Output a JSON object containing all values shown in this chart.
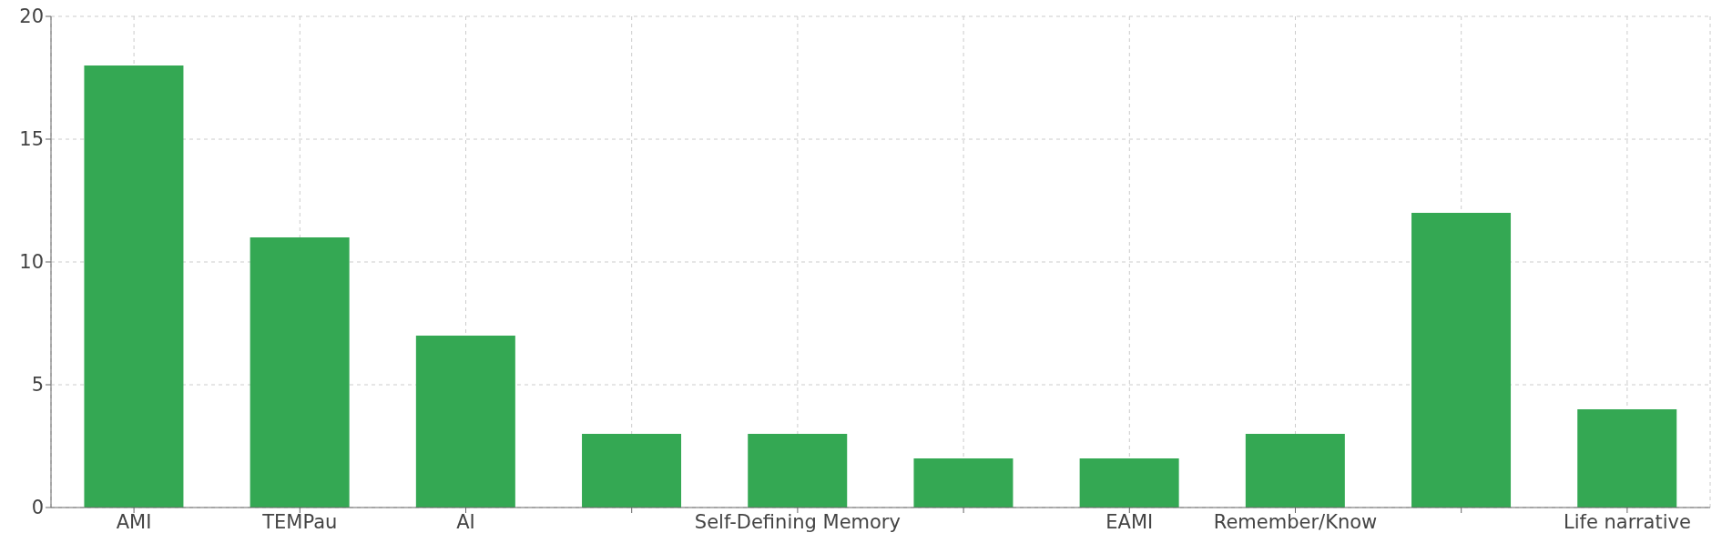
{
  "chart_data": {
    "type": "bar",
    "categories": [
      "AMI",
      "TEMPau",
      "AI",
      null,
      "Self-Defining Memory",
      null,
      "EAMI",
      "Remember/Know",
      null,
      "Life narrative"
    ],
    "values": [
      18,
      11,
      7,
      3,
      3,
      2,
      2,
      3,
      12,
      4
    ],
    "color": "#34a853",
    "ylim": [
      0,
      20
    ],
    "yticks": [
      0,
      5,
      10,
      15,
      20
    ],
    "grid": true
  }
}
